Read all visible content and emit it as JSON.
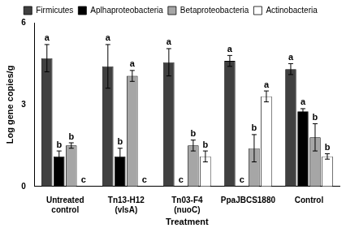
{
  "chart_data": {
    "type": "bar",
    "x_label": "Treatment",
    "y_label": "Log gene copies/g",
    "categories": [
      "Untreated control",
      "Tn13-H12 (vlsA)",
      "Tn03-F4 (nuoC)",
      "PpaJBCS1880",
      "Control"
    ],
    "series": [
      {
        "name": "Firmicutes",
        "color": "#404040",
        "values": [
          4.7,
          4.4,
          4.55,
          4.6,
          4.3
        ],
        "error": [
          0.5,
          0.8,
          0.5,
          0.2,
          0.2
        ],
        "annotations": [
          "a",
          "a",
          "a",
          "a",
          "a"
        ]
      },
      {
        "name": "Aplhaproteobacteria",
        "color": "#000000",
        "values": [
          1.1,
          1.1,
          0,
          0,
          2.75
        ],
        "error": [
          0.2,
          0.3,
          0,
          0,
          0.1
        ],
        "annotations": [
          "b",
          "b",
          "c",
          "c",
          "a"
        ]
      },
      {
        "name": "Betaproteobacteria",
        "color": "#a6a6a6",
        "values": [
          1.5,
          4.05,
          1.5,
          1.4,
          1.8
        ],
        "error": [
          0.1,
          0.2,
          0.2,
          0.5,
          0.5
        ],
        "annotations": [
          "b",
          "a",
          "b",
          "b",
          "b"
        ]
      },
      {
        "name": "Actinobacteria",
        "color": "#ffffff",
        "values": [
          0,
          0,
          1.1,
          3.3,
          1.1
        ],
        "error": [
          0,
          0,
          0.2,
          0.2,
          0.1
        ],
        "annotations": [
          "c",
          "c",
          "b",
          "a",
          "b"
        ]
      }
    ],
    "ylim": [
      0,
      6
    ],
    "yticks": [
      0,
      3,
      6
    ],
    "grid": false,
    "legend": "top"
  }
}
